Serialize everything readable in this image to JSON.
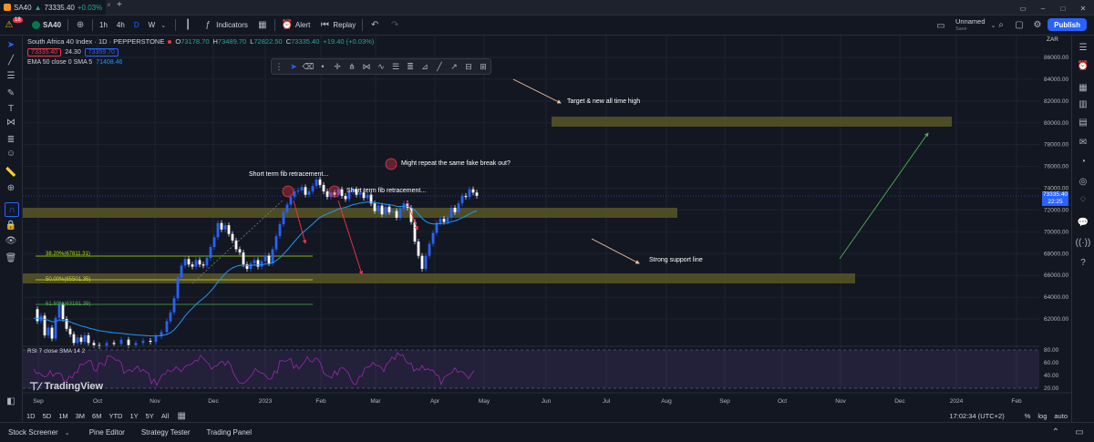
{
  "browser_tab": {
    "symbol": "SA40",
    "price": "73335.40",
    "change": "+0.03%",
    "new_tab": "+"
  },
  "toolbar": {
    "notif_badge": "18",
    "symbol": "SA40",
    "intervals": [
      "1h",
      "4h",
      "D",
      "W"
    ],
    "indicators": "Indicators",
    "alert": "Alert",
    "replay": "Replay",
    "layout_name": "Unnamed",
    "layout_status": "Save",
    "publish": "Publish"
  },
  "legend": {
    "title": "South Africa 40 Index · 1D · PEPPERSTONE",
    "ohlc": [
      {
        "k": "O",
        "v": "73178.70"
      },
      {
        "k": "H",
        "v": "73489.70"
      },
      {
        "k": "L",
        "v": "72822.50"
      },
      {
        "k": "C",
        "v": "73335.40"
      }
    ],
    "change": "+19.40 (+0.03%)",
    "sell": "73335.40",
    "spread": "24.30",
    "buy": "73359.70",
    "ema": "EMA 50 close 0 SMA 5",
    "ema_value": "71408.46"
  },
  "annotations": {
    "target": "Target & new all time high",
    "short_fib": "Short term fib retracement...",
    "short_fib2": "Short term fib retracement...",
    "fake_break": "Might repeat the same fake break out?",
    "support": "Strong support line"
  },
  "fib": {
    "f382": "38.20%(67811.31)",
    "f50": "50.00%(65501.35)",
    "f618": "61.80%(63191.39)"
  },
  "rsi": {
    "label": "RSI 7 close SMA 14 2",
    "ticks": [
      "80.00",
      "60.00",
      "40.00",
      "20.00"
    ]
  },
  "axis": {
    "currency": "ZAR",
    "ticks": [
      "86000.00",
      "84000.00",
      "82000.00",
      "80000.00",
      "78000.00",
      "76000.00",
      "74000.00",
      "72000.00",
      "70000.00",
      "68000.00",
      "66000.00",
      "64000.00",
      "62000.00"
    ],
    "price_label": "73335.40",
    "countdown": "22:25",
    "months": [
      "Sep",
      "Oct",
      "Nov",
      "Dec",
      "2023",
      "Feb",
      "Mar",
      "Apr",
      "May",
      "Jun",
      "Jul",
      "Aug",
      "Sep",
      "Oct",
      "Nov",
      "Dec",
      "2024",
      "Feb"
    ]
  },
  "watermark": "TradingView",
  "ranges": [
    "1D",
    "5D",
    "1M",
    "3M",
    "6M",
    "YTD",
    "1Y",
    "5Y",
    "All"
  ],
  "clock": "17:02:34 (UTC+2)",
  "scale_opts": [
    "%",
    "log",
    "auto"
  ],
  "bottom_panels": [
    "Stock Screener",
    "Pine Editor",
    "Strategy Tester",
    "Trading Panel"
  ],
  "colors": {
    "bg": "#131722",
    "bull": "#2962ff",
    "bear": "#ffffff",
    "zone": "#5d5a27",
    "accent": "#2962ff",
    "ema": "#2196f3",
    "rsi": "#9c27b0"
  }
}
